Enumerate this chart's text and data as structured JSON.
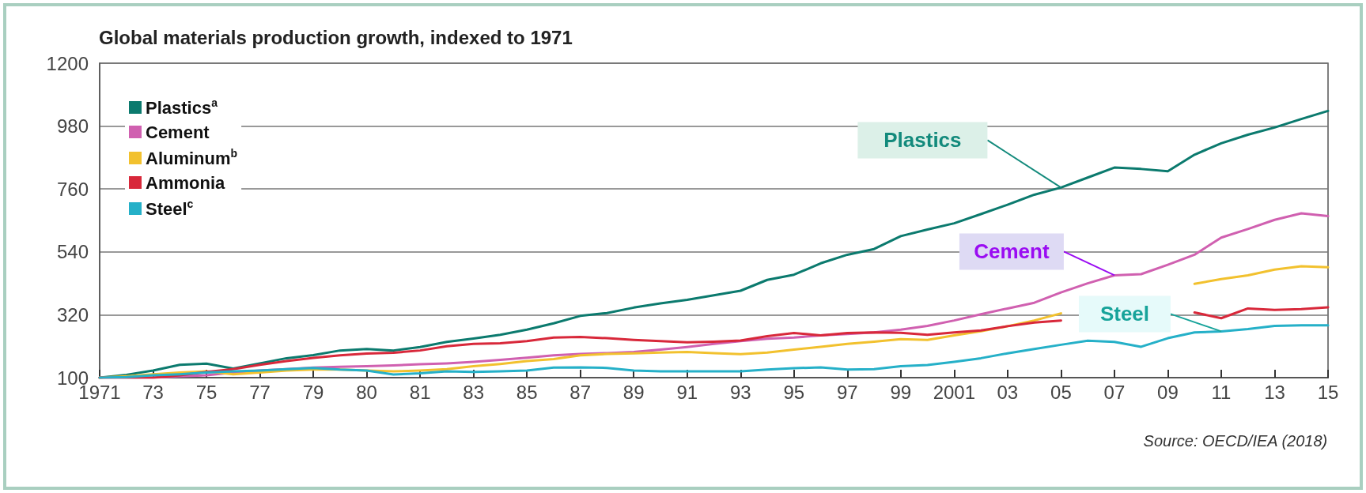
{
  "chart_data": {
    "type": "line",
    "title": "Global materials production growth, indexed to 1971",
    "categories": [
      "1971",
      null,
      "73",
      null,
      "75",
      null,
      "77",
      null,
      "79",
      null,
      "80",
      null,
      "81",
      null,
      "83",
      null,
      "85",
      null,
      "87",
      null,
      "89",
      null,
      "91",
      null,
      "93",
      null,
      "95",
      null,
      "97",
      null,
      "99",
      null,
      "2001",
      null,
      "03",
      null,
      "05",
      null,
      "07",
      null,
      "09",
      null,
      "11",
      null,
      "13",
      null,
      "15"
    ],
    "series": [
      {
        "name": "Plastics$^{a}$",
        "color": "#0b7a6e",
        "values": [
          100,
          110,
          125,
          145,
          149,
          132,
          150,
          168,
          179,
          195,
          200,
          195,
          207,
          225,
          237,
          250,
          268,
          290,
          316,
          326,
          345,
          360,
          372,
          388,
          404,
          442,
          460,
          500,
          530,
          550,
          595,
          618,
          640,
          672,
          705,
          740,
          765,
          800,
          835,
          830,
          822,
          880,
          920,
          950,
          975,
          1005,
          1033
        ]
      },
      {
        "name": "Cement",
        "color": "#d060b0",
        "values": [
          100,
          100,
          100,
          105,
          108,
          118,
          125,
          130,
          135,
          138,
          140,
          143,
          147,
          150,
          155,
          162,
          170,
          178,
          183,
          186,
          190,
          198,
          207,
          218,
          228,
          236,
          240,
          248,
          253,
          258,
          268,
          281,
          300,
          322,
          342,
          362,
          398,
          430,
          458,
          462,
          495,
          530,
          590,
          620,
          652,
          675,
          665
        ]
      },
      {
        "name": "Aluminum$^{b}$",
        "color": "#f2c12e",
        "values": [
          100,
          105,
          112,
          118,
          122,
          112,
          118,
          125,
          128,
          128,
          125,
          122,
          125,
          130,
          140,
          148,
          158,
          165,
          178,
          183,
          185,
          188,
          190,
          186,
          182,
          188,
          198,
          208,
          218,
          226,
          235,
          232,
          248,
          262,
          280,
          300,
          325,
          null,
          null,
          null,
          null,
          428,
          445,
          458,
          478,
          490,
          486
        ]
      },
      {
        "name": "Ammonia",
        "color": "#d8283a",
        "values": [
          100,
          100,
          100,
          108,
          120,
          130,
          145,
          158,
          169,
          178,
          184,
          187,
          195,
          210,
          218,
          220,
          228,
          240,
          242,
          238,
          232,
          228,
          224,
          226,
          230,
          245,
          256,
          248,
          256,
          258,
          257,
          250,
          258,
          265,
          280,
          293,
          300,
          null,
          null,
          null,
          null,
          328,
          308,
          342,
          337,
          340,
          346
        ]
      },
      {
        "name": "Steel$^{c}$",
        "color": "#25b0c8",
        "values": [
          100,
          102,
          108,
          112,
          118,
          122,
          125,
          130,
          134,
          128,
          125,
          111,
          115,
          122,
          120,
          122,
          125,
          135,
          136,
          134,
          125,
          122,
          122,
          122,
          122,
          128,
          133,
          136,
          128,
          130,
          140,
          144,
          155,
          168,
          185,
          200,
          215,
          229,
          225,
          208,
          238,
          258,
          262,
          270,
          281,
          283,
          283
        ]
      }
    ],
    "ylim": [
      100,
      1200
    ],
    "yticks": [
      100,
      320,
      540,
      760,
      980,
      1200
    ],
    "grid": "y",
    "legend": "top left",
    "annotations": [
      {
        "text": "Plastics",
        "x": "05",
        "y": 765
      },
      {
        "text": "Cement",
        "x": "07",
        "y": 458
      },
      {
        "text": "Steel",
        "x": "11",
        "y": 262
      },
      "Source: OECD/IEA (2018)"
    ]
  }
}
